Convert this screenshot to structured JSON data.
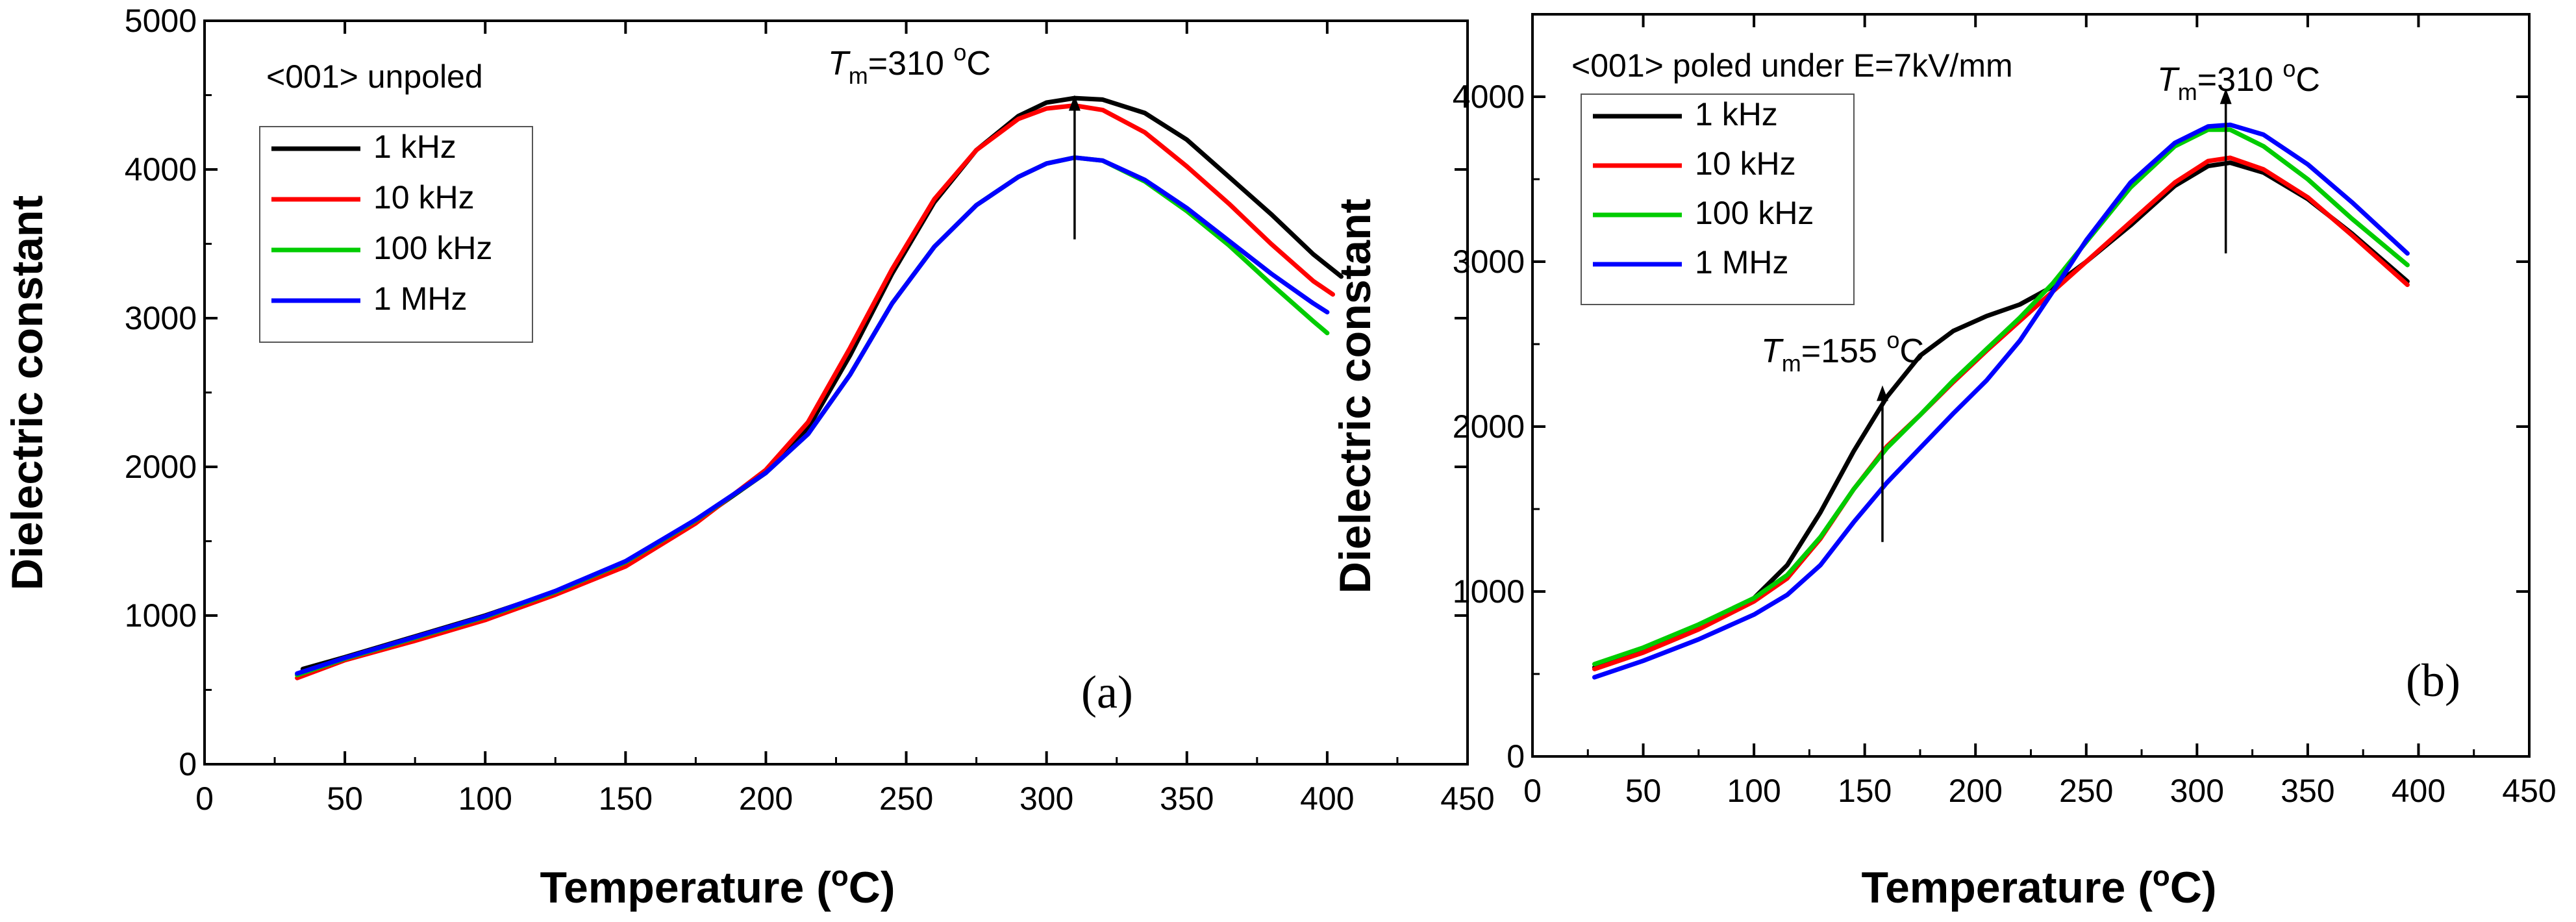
{
  "chart_data": [
    {
      "type": "line",
      "panel": "(a)",
      "note": "<001> unpoled",
      "xlabel": "Temperature (",
      "xlabel_degree": "o",
      "xlabel_unit": "C)",
      "ylabel": "Dielectric constant",
      "xlim": [
        0,
        450
      ],
      "ylim": [
        0,
        5000
      ],
      "xticks": [
        0,
        50,
        100,
        150,
        200,
        250,
        300,
        350,
        400,
        450
      ],
      "yticks": [
        0,
        1000,
        2000,
        3000,
        4000,
        5000
      ],
      "legend": {
        "placement": "top-left"
      },
      "series": [
        {
          "name": "1 kHz",
          "color": "#000000",
          "x": [
            35,
            50,
            75,
            100,
            125,
            150,
            175,
            200,
            215,
            230,
            245,
            260,
            275,
            290,
            300,
            310,
            320,
            335,
            350,
            365,
            380,
            395,
            405
          ],
          "y": [
            640,
            720,
            860,
            1000,
            1160,
            1360,
            1630,
            1960,
            2260,
            2750,
            3300,
            3780,
            4130,
            4360,
            4450,
            4480,
            4470,
            4380,
            4200,
            3950,
            3700,
            3430,
            3280
          ]
        },
        {
          "name": "10 kHz",
          "color": "#ff0000",
          "x": [
            33,
            50,
            75,
            100,
            125,
            150,
            175,
            200,
            215,
            230,
            245,
            260,
            275,
            290,
            300,
            310,
            320,
            335,
            350,
            365,
            380,
            395,
            402
          ],
          "y": [
            580,
            700,
            830,
            970,
            1140,
            1330,
            1620,
            1980,
            2300,
            2800,
            3330,
            3800,
            4130,
            4340,
            4410,
            4430,
            4400,
            4250,
            4020,
            3770,
            3500,
            3250,
            3160
          ]
        },
        {
          "name": "100 kHz",
          "color": "#00cc00",
          "x": [
            33,
            50,
            75,
            100,
            125,
            150,
            175,
            200,
            215,
            230,
            245,
            260,
            275,
            290,
            300,
            310,
            320,
            335,
            350,
            365,
            380,
            395,
            400
          ],
          "y": [
            600,
            710,
            850,
            990,
            1160,
            1360,
            1640,
            1960,
            2220,
            2620,
            3100,
            3480,
            3760,
            3950,
            4040,
            4080,
            4060,
            3920,
            3720,
            3490,
            3230,
            2980,
            2900
          ]
        },
        {
          "name": "1 MHz",
          "color": "#0000ff",
          "x": [
            33,
            50,
            75,
            100,
            125,
            150,
            175,
            200,
            215,
            230,
            245,
            260,
            275,
            290,
            300,
            310,
            320,
            335,
            350,
            365,
            380,
            395,
            400
          ],
          "y": [
            610,
            715,
            855,
            995,
            1165,
            1365,
            1645,
            1960,
            2220,
            2620,
            3100,
            3480,
            3760,
            3950,
            4040,
            4080,
            4060,
            3930,
            3740,
            3520,
            3300,
            3100,
            3040
          ]
        }
      ],
      "annotations": [
        {
          "label_symbol": "T",
          "label_sub": "m",
          "label_value": "=310 ",
          "label_sup": "o",
          "label_unit": "C",
          "x": 310,
          "arrow_from": 3530,
          "arrow_to": 4500
        }
      ]
    },
    {
      "type": "line",
      "panel": "(b)",
      "note": "<001> poled under E=7kV/mm",
      "xlabel": "Temperature (",
      "xlabel_degree": "o",
      "xlabel_unit": "C)",
      "ylabel": "Dielectric constant",
      "xlim": [
        0,
        450
      ],
      "ylim": [
        0,
        4500
      ],
      "xticks": [
        0,
        50,
        100,
        150,
        200,
        250,
        300,
        350,
        400,
        450
      ],
      "yticks": [
        0,
        1000,
        2000,
        3000,
        4000
      ],
      "legend": {
        "placement": "top-left"
      },
      "series": [
        {
          "name": "1 kHz",
          "color": "#000000",
          "x": [
            28,
            50,
            75,
            100,
            115,
            130,
            145,
            160,
            175,
            190,
            205,
            220,
            235,
            250,
            270,
            290,
            305,
            315,
            330,
            350,
            370,
            395
          ],
          "y": [
            540,
            640,
            780,
            960,
            1160,
            1480,
            1850,
            2180,
            2430,
            2580,
            2670,
            2740,
            2850,
            3000,
            3220,
            3460,
            3580,
            3600,
            3540,
            3380,
            3170,
            2880
          ]
        },
        {
          "name": "10 kHz",
          "color": "#ff0000",
          "x": [
            28,
            50,
            75,
            100,
            115,
            130,
            145,
            160,
            175,
            190,
            205,
            220,
            235,
            250,
            270,
            290,
            305,
            315,
            330,
            350,
            370,
            395
          ],
          "y": [
            530,
            630,
            770,
            940,
            1080,
            1320,
            1620,
            1880,
            2070,
            2270,
            2460,
            2640,
            2820,
            3000,
            3240,
            3480,
            3610,
            3630,
            3560,
            3390,
            3160,
            2860
          ]
        },
        {
          "name": "100 kHz",
          "color": "#00cc00",
          "x": [
            28,
            50,
            75,
            100,
            115,
            130,
            145,
            160,
            175,
            190,
            205,
            220,
            235,
            250,
            270,
            290,
            305,
            315,
            330,
            350,
            370,
            395
          ],
          "y": [
            560,
            660,
            800,
            960,
            1100,
            1330,
            1620,
            1870,
            2070,
            2280,
            2470,
            2660,
            2870,
            3120,
            3450,
            3700,
            3800,
            3800,
            3700,
            3500,
            3260,
            2980
          ]
        },
        {
          "name": "1 MHz",
          "color": "#0000ff",
          "x": [
            28,
            50,
            75,
            100,
            115,
            130,
            145,
            160,
            175,
            190,
            205,
            220,
            235,
            250,
            270,
            290,
            305,
            315,
            330,
            350,
            370,
            395
          ],
          "y": [
            480,
            580,
            710,
            860,
            980,
            1160,
            1420,
            1660,
            1870,
            2080,
            2280,
            2520,
            2820,
            3130,
            3480,
            3720,
            3820,
            3830,
            3770,
            3590,
            3360,
            3050
          ]
        }
      ],
      "annotations": [
        {
          "label_symbol": "T",
          "label_sub": "m",
          "label_value": "=155 ",
          "label_sup": "o",
          "label_unit": "C",
          "x": 158,
          "arrow_from": 1300,
          "arrow_to": 2250
        },
        {
          "label_symbol": "T",
          "label_sub": "m",
          "label_value": "=310 ",
          "label_sup": "o",
          "label_unit": "C",
          "x": 313,
          "arrow_from": 3050,
          "arrow_to": 4050
        }
      ]
    }
  ]
}
